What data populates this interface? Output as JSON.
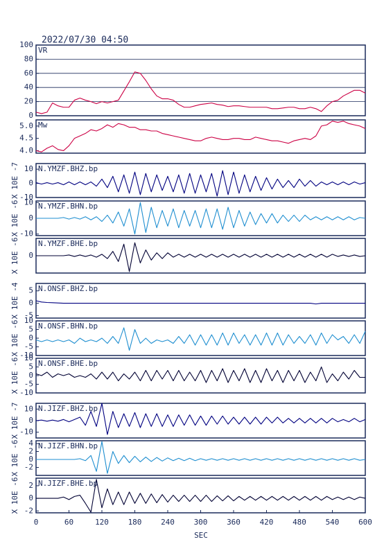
{
  "chart_data": {
    "type": "line",
    "title": "2022/07/30 04:50",
    "xlabel": "SEC",
    "xlim": [
      0,
      600
    ],
    "xticks": [
      0,
      60,
      120,
      180,
      240,
      300,
      360,
      420,
      480,
      540,
      600
    ],
    "x": [
      0,
      10,
      20,
      30,
      40,
      50,
      60,
      70,
      80,
      90,
      100,
      110,
      120,
      130,
      140,
      150,
      160,
      170,
      180,
      190,
      200,
      210,
      220,
      230,
      240,
      250,
      260,
      270,
      280,
      290,
      300,
      310,
      320,
      330,
      340,
      350,
      360,
      370,
      380,
      390,
      400,
      410,
      420,
      430,
      440,
      450,
      460,
      470,
      480,
      490,
      500,
      510,
      520,
      530,
      540,
      550,
      560,
      570,
      580,
      590,
      600
    ],
    "panels": [
      {
        "label": "VR",
        "color": "#cc0044",
        "grid": true,
        "ylim": [
          0,
          100
        ],
        "yticks": [
          0,
          20,
          40,
          60,
          80,
          100
        ],
        "values": [
          5,
          3,
          5,
          18,
          14,
          12,
          12,
          22,
          25,
          22,
          20,
          17,
          20,
          18,
          20,
          22,
          35,
          48,
          62,
          60,
          50,
          38,
          28,
          24,
          24,
          22,
          16,
          12,
          12,
          14,
          16,
          17,
          18,
          16,
          15,
          13,
          14,
          14,
          13,
          12,
          12,
          12,
          12,
          10,
          10,
          11,
          12,
          12,
          10,
          10,
          12,
          10,
          6,
          14,
          20,
          22,
          28,
          32,
          36,
          36,
          32
        ]
      },
      {
        "label": "Mw",
        "color": "#cc0044",
        "grid": false,
        "ylim": [
          3.9,
          5.25
        ],
        "yticks": [
          {
            "value": 4,
            "label": "4.0"
          },
          4.5,
          {
            "value": 5,
            "label": "5.0"
          }
        ],
        "values": [
          4.0,
          3.95,
          4.1,
          4.2,
          4.05,
          4.0,
          4.2,
          4.5,
          4.6,
          4.7,
          4.85,
          4.8,
          4.9,
          5.05,
          4.95,
          5.1,
          5.05,
          4.95,
          4.95,
          4.85,
          4.85,
          4.8,
          4.8,
          4.7,
          4.65,
          4.6,
          4.55,
          4.5,
          4.45,
          4.4,
          4.4,
          4.5,
          4.55,
          4.5,
          4.45,
          4.45,
          4.5,
          4.5,
          4.45,
          4.45,
          4.55,
          4.5,
          4.45,
          4.4,
          4.4,
          4.35,
          4.3,
          4.4,
          4.45,
          4.5,
          4.45,
          4.6,
          5.0,
          5.05,
          5.2,
          5.15,
          5.2,
          5.1,
          5.05,
          5.0,
          4.9
        ]
      },
      {
        "label": "N.YMZF.BHZ.bp",
        "unit": "X 10E -7",
        "color": "#000080",
        "grid": false,
        "ylim": [
          -10,
          14
        ],
        "yticks": [
          -10,
          0,
          10
        ],
        "values": [
          0.5,
          -0.5,
          0.5,
          -0.5,
          0.5,
          -1,
          1,
          -1,
          1,
          -1,
          1,
          -2,
          3,
          -3,
          5,
          -6,
          6,
          -7,
          8,
          -8,
          7,
          -6,
          6,
          -5,
          5,
          -6,
          6,
          -7,
          7,
          -7,
          6,
          -6,
          7,
          -9,
          9,
          -8,
          8,
          -7,
          6,
          -6,
          5,
          -5,
          4,
          -4,
          3,
          -3,
          2,
          -3,
          3,
          -2,
          2,
          -2,
          1,
          -1,
          1,
          -1,
          1,
          -1,
          1,
          -0.5,
          0.5
        ]
      },
      {
        "label": "N.YMZF.BHN.bp",
        "unit": "X 10E -6",
        "color": "#1e8ed0",
        "grid": false,
        "ylim": [
          -11,
          11
        ],
        "yticks": [
          -10,
          0,
          10
        ],
        "values": [
          0,
          0,
          0,
          0,
          0,
          0.5,
          -0.5,
          0.5,
          -0.5,
          1,
          -1,
          1,
          -2,
          2,
          -3,
          4,
          -5,
          6,
          -10,
          10,
          -9,
          7,
          -6,
          5,
          -5,
          6,
          -6,
          5,
          -5,
          5,
          -6,
          6,
          -6,
          6,
          -7,
          7,
          -6,
          5,
          -5,
          4,
          -4,
          3,
          -3,
          3,
          -3,
          2,
          -2,
          2,
          -2,
          2,
          -1,
          1,
          -1,
          1,
          -1,
          1,
          -1,
          1,
          -1,
          0.5,
          0
        ]
      },
      {
        "label": "N.YMZF.BHE.bp",
        "unit": "X 10E -6",
        "color": "#000033",
        "grid": false,
        "ylim": [
          -12,
          12
        ],
        "yticks": [
          0
        ],
        "values": [
          0,
          0,
          0,
          0,
          0,
          0,
          0.5,
          -0.5,
          0.5,
          -0.5,
          0.5,
          -1,
          1,
          -2,
          3,
          -4,
          8,
          -11,
          9,
          -5,
          4,
          -3,
          2,
          -2,
          2,
          -1,
          1,
          -1,
          1,
          -1,
          1,
          -1,
          1,
          -1,
          1,
          -1,
          1,
          -1,
          1,
          -1,
          1,
          -1,
          1,
          -1,
          1,
          -1,
          1,
          -1,
          1,
          -1,
          1,
          -1,
          1,
          -1,
          1,
          -0.5,
          0.5,
          -0.5,
          0.5,
          -0.5,
          0
        ]
      },
      {
        "label": "N.ONSF.BHZ.bp",
        "unit": "X 10E -4",
        "color": "#000080",
        "grid": false,
        "ylim": [
          -6,
          8
        ],
        "yticks": [
          -5,
          0,
          5
        ],
        "values": [
          1,
          0.5,
          0.3,
          0.2,
          0.1,
          0,
          0,
          0,
          0,
          0,
          0,
          0,
          0,
          0,
          0,
          0,
          0,
          0,
          0,
          0,
          0,
          0,
          0,
          0,
          0,
          0,
          0,
          0,
          0,
          0,
          0,
          0,
          0,
          0,
          0,
          0,
          0,
          0,
          0,
          0,
          0,
          0,
          0,
          0,
          0,
          0,
          0,
          0,
          0,
          0,
          0,
          -0.3,
          0,
          0,
          0,
          0,
          0,
          0,
          0,
          0,
          0
        ]
      },
      {
        "label": "N.ONSF.BHN.bp",
        "unit": "X 10E -6",
        "color": "#1e8ed0",
        "grid": false,
        "ylim": [
          -10,
          10
        ],
        "yticks": [
          -10,
          -5,
          0,
          5,
          10
        ],
        "values": [
          -1,
          -2,
          -1,
          -2,
          -1,
          -2,
          -1,
          -3,
          0,
          -2,
          -1,
          -2,
          0,
          -3,
          1,
          -3,
          6,
          -7,
          5,
          -3,
          0,
          -3,
          -1,
          -2,
          -1,
          -3,
          1,
          -3,
          2,
          -4,
          2,
          -4,
          2,
          -4,
          3,
          -4,
          3,
          -3,
          2,
          -4,
          2,
          -4,
          3,
          -4,
          3,
          -4,
          2,
          -3,
          1,
          -3,
          2,
          -4,
          3,
          -3,
          2,
          -1,
          1,
          -3,
          2,
          -3,
          4
        ]
      },
      {
        "label": "N.ONSF.BHE.bp",
        "unit": "X 10E -6",
        "color": "#000033",
        "grid": false,
        "ylim": [
          -10,
          10
        ],
        "yticks": [
          -10,
          -5,
          0,
          5,
          10
        ],
        "values": [
          1,
          0,
          2,
          -1,
          1,
          0,
          1,
          -1,
          0,
          -1,
          1,
          -2,
          2,
          -2,
          2,
          -3,
          1,
          -2,
          2,
          -3,
          3,
          -3,
          3,
          -2,
          3,
          -3,
          3,
          -3,
          2,
          -3,
          3,
          -4,
          3,
          -3,
          4,
          -4,
          3,
          -3,
          4,
          -4,
          3,
          -4,
          4,
          -3,
          3,
          -4,
          3,
          -3,
          3,
          -4,
          2,
          -3,
          5,
          -4,
          1,
          -3,
          2,
          -2,
          3,
          -1,
          -1
        ]
      },
      {
        "label": "N.JIZF.BHZ.bp",
        "unit": "X 10E -7",
        "color": "#000080",
        "grid": false,
        "ylim": [
          -15,
          15
        ],
        "yticks": [
          -10,
          0,
          10
        ],
        "values": [
          0,
          0.5,
          -0.5,
          0.5,
          -0.5,
          1,
          -1,
          1,
          3,
          -4,
          8,
          -5,
          15,
          -12,
          8,
          -6,
          6,
          -5,
          7,
          -6,
          6,
          -5,
          6,
          -5,
          5,
          -5,
          5,
          -4,
          5,
          -4,
          4,
          -4,
          4,
          -3,
          4,
          -3,
          3,
          -3,
          3,
          -3,
          3,
          -3,
          3,
          -2,
          3,
          -2,
          2,
          -2,
          2,
          -2,
          2,
          -2,
          2,
          -2,
          2,
          -1,
          1,
          -1,
          2,
          -1,
          1
        ]
      },
      {
        "label": "N.JIZF.BHN.bp",
        "unit": "X 10E -6",
        "color": "#1e8ed0",
        "grid": false,
        "ylim": [
          -4,
          4.7
        ],
        "yticks": [
          -2,
          0,
          2,
          4
        ],
        "values": [
          0,
          0,
          0,
          0,
          0,
          0,
          0,
          0,
          0.2,
          -0.3,
          1,
          -3,
          4.5,
          -3.5,
          2,
          -1,
          1,
          -0.8,
          0.8,
          -0.6,
          0.6,
          -0.5,
          0.5,
          -0.4,
          0.4,
          -0.3,
          0.3,
          -0.3,
          0.3,
          -0.3,
          0.2,
          -0.2,
          0.2,
          -0.2,
          0.2,
          -0.2,
          0.2,
          -0.2,
          0.2,
          -0.2,
          0.2,
          -0.2,
          0.2,
          -0.2,
          0.2,
          -0.2,
          0.2,
          -0.2,
          0.2,
          -0.2,
          0.2,
          -0.2,
          0.2,
          -0.2,
          0.2,
          -0.2,
          0.2,
          -0.2,
          0.2,
          -0.2,
          0
        ]
      },
      {
        "label": "N.JIZF.BHE.bp",
        "unit": "X 10E -6",
        "color": "#000033",
        "grid": false,
        "ylim": [
          -2.3,
          3.2
        ],
        "yticks": [
          -2,
          0,
          2
        ],
        "values": [
          0,
          0,
          0,
          0,
          0,
          0.2,
          -0.2,
          0.3,
          0.5,
          -0.8,
          -2.2,
          3,
          -1.5,
          1.5,
          -1,
          1,
          -1,
          1,
          -0.8,
          0.8,
          -0.8,
          0.7,
          -0.7,
          0.6,
          -0.6,
          0.5,
          -0.5,
          0.5,
          -0.5,
          0.5,
          -0.5,
          0.5,
          -0.5,
          0.4,
          -0.4,
          0.4,
          -0.4,
          0.3,
          -0.3,
          0.3,
          -0.3,
          0.3,
          -0.3,
          0.3,
          -0.3,
          0.3,
          -0.3,
          0.3,
          -0.3,
          0.3,
          -0.3,
          0.3,
          -0.3,
          0.3,
          -0.2,
          0.2,
          -0.2,
          0.2,
          -0.2,
          0.2,
          0
        ]
      }
    ]
  }
}
